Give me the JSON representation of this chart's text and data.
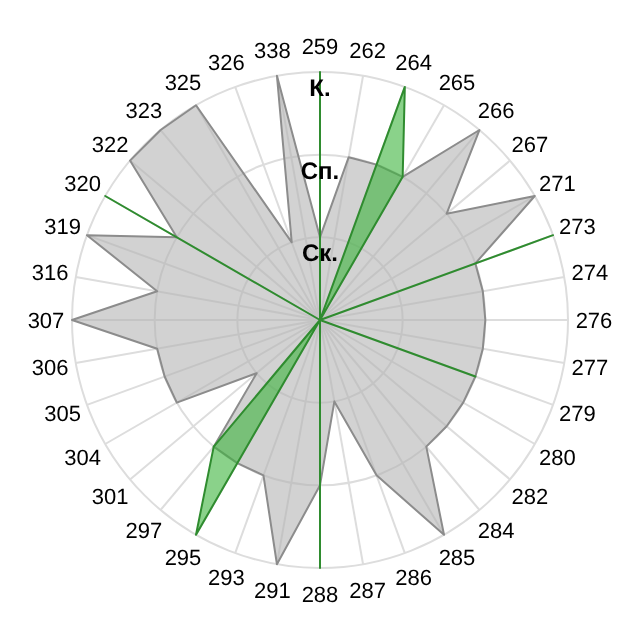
{
  "chart_data": {
    "type": "radar",
    "categories": [
      "259",
      "262",
      "264",
      "265",
      "266",
      "267",
      "271",
      "273",
      "274",
      "276",
      "277",
      "279",
      "280",
      "282",
      "284",
      "285",
      "286",
      "287",
      "288",
      "291",
      "293",
      "295",
      "297",
      "301",
      "304",
      "305",
      "306",
      "307",
      "316",
      "319",
      "320",
      "322",
      "323",
      "325",
      "326",
      "338"
    ],
    "ylim": [
      0,
      3
    ],
    "yticks": [
      {
        "value": 1,
        "label": "Ск."
      },
      {
        "value": 2,
        "label": "Сп."
      },
      {
        "value": 3,
        "label": "К."
      }
    ],
    "grid": true,
    "series": [
      {
        "color": "#b4b4b4",
        "values": [
          1,
          2,
          2,
          2,
          3,
          2,
          3,
          2,
          2,
          2,
          2,
          2,
          2,
          2,
          2,
          3,
          2,
          1,
          2,
          3,
          2,
          2,
          2,
          1,
          2,
          2,
          2,
          3,
          2,
          3,
          2,
          3,
          3,
          3,
          1,
          3
        ]
      },
      {
        "color": "#3cb43c",
        "values": [
          3,
          0,
          3,
          2,
          0,
          0,
          0,
          3,
          0,
          0,
          0,
          2,
          0,
          0,
          0,
          0,
          0,
          0,
          3,
          0,
          0,
          3,
          2,
          0,
          0,
          0,
          0,
          0,
          0,
          0,
          3,
          0,
          0,
          0,
          0,
          0
        ]
      }
    ]
  }
}
